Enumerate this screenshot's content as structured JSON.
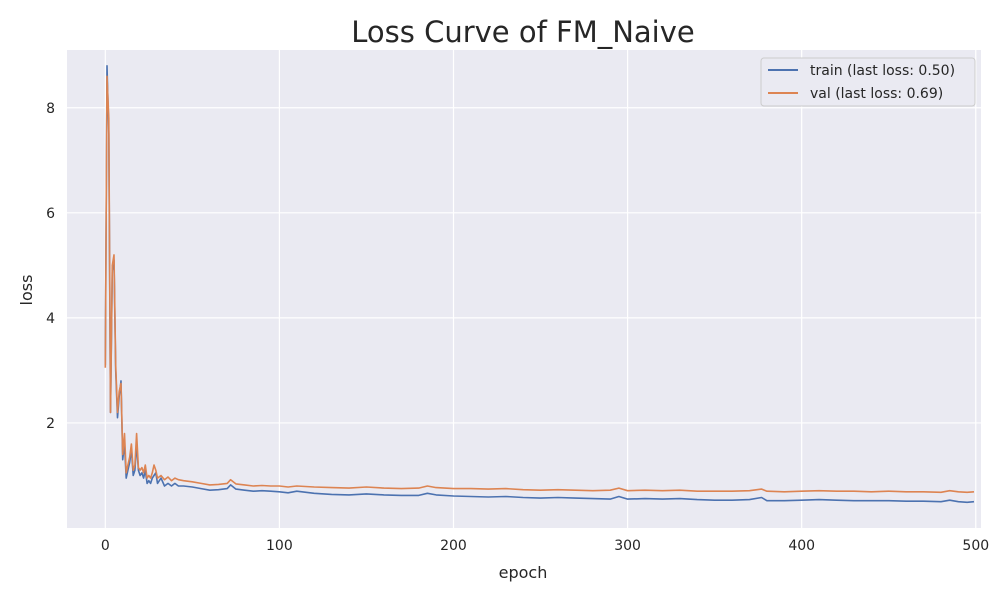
{
  "chart_data": {
    "type": "line",
    "title": "Loss Curve of FM_Naive",
    "xlabel": "epoch",
    "ylabel": "loss",
    "xlim": [
      -22,
      503
    ],
    "ylim": [
      0.0,
      9.1
    ],
    "xticks": [
      0,
      100,
      200,
      300,
      400,
      500
    ],
    "yticks": [
      2,
      4,
      6,
      8
    ],
    "grid": true,
    "legend_position": "top-right",
    "series": [
      {
        "name": "train (last loss: 0.50)",
        "color": "#4c72b0",
        "x": [
          0,
          1,
          2,
          3,
          4,
          5,
          6,
          7,
          8,
          9,
          10,
          11,
          12,
          13,
          14,
          15,
          16,
          17,
          18,
          19,
          20,
          21,
          22,
          23,
          24,
          25,
          26,
          27,
          28,
          29,
          30,
          32,
          34,
          36,
          38,
          40,
          42,
          45,
          50,
          55,
          60,
          65,
          70,
          72,
          75,
          80,
          85,
          90,
          95,
          100,
          105,
          110,
          120,
          130,
          140,
          150,
          160,
          170,
          180,
          185,
          190,
          200,
          210,
          220,
          230,
          240,
          250,
          260,
          270,
          280,
          290,
          295,
          300,
          310,
          320,
          330,
          340,
          350,
          360,
          370,
          377,
          380,
          390,
          400,
          410,
          420,
          430,
          440,
          450,
          460,
          470,
          480,
          485,
          490,
          495,
          499
        ],
        "values": [
          3.1,
          8.8,
          7.5,
          2.2,
          4.9,
          5.1,
          3.0,
          2.1,
          2.5,
          2.8,
          1.3,
          1.6,
          0.95,
          1.1,
          1.25,
          1.5,
          1.0,
          1.1,
          1.6,
          1.1,
          1.0,
          1.05,
          0.95,
          1.1,
          0.85,
          0.9,
          0.85,
          0.95,
          1.0,
          1.05,
          0.85,
          0.95,
          0.8,
          0.85,
          0.8,
          0.85,
          0.8,
          0.8,
          0.78,
          0.75,
          0.72,
          0.73,
          0.75,
          0.82,
          0.74,
          0.72,
          0.7,
          0.71,
          0.7,
          0.69,
          0.67,
          0.7,
          0.66,
          0.64,
          0.63,
          0.65,
          0.63,
          0.62,
          0.62,
          0.66,
          0.63,
          0.61,
          0.6,
          0.59,
          0.6,
          0.58,
          0.57,
          0.58,
          0.57,
          0.56,
          0.55,
          0.6,
          0.55,
          0.56,
          0.55,
          0.56,
          0.54,
          0.53,
          0.53,
          0.54,
          0.58,
          0.52,
          0.52,
          0.53,
          0.54,
          0.53,
          0.52,
          0.52,
          0.52,
          0.51,
          0.51,
          0.5,
          0.53,
          0.5,
          0.49,
          0.5
        ]
      },
      {
        "name": "val (last loss: 0.69)",
        "color": "#dd8452",
        "x": [
          0,
          1,
          2,
          3,
          4,
          5,
          6,
          7,
          8,
          9,
          10,
          11,
          12,
          13,
          14,
          15,
          16,
          17,
          18,
          19,
          20,
          21,
          22,
          23,
          24,
          25,
          26,
          27,
          28,
          29,
          30,
          32,
          34,
          36,
          38,
          40,
          42,
          45,
          50,
          55,
          60,
          65,
          70,
          72,
          75,
          80,
          85,
          90,
          95,
          100,
          105,
          110,
          120,
          130,
          140,
          150,
          160,
          170,
          180,
          185,
          190,
          200,
          210,
          220,
          230,
          240,
          250,
          260,
          270,
          280,
          290,
          295,
          300,
          310,
          320,
          330,
          340,
          350,
          360,
          370,
          377,
          380,
          390,
          400,
          410,
          420,
          430,
          440,
          450,
          460,
          470,
          480,
          485,
          490,
          495,
          499
        ],
        "values": [
          3.05,
          8.6,
          7.8,
          2.2,
          5.0,
          5.2,
          3.1,
          2.2,
          2.6,
          2.75,
          1.4,
          1.8,
          1.05,
          1.2,
          1.35,
          1.6,
          1.1,
          1.2,
          1.8,
          1.15,
          1.1,
          1.15,
          1.05,
          1.2,
          0.95,
          1.0,
          0.95,
          1.05,
          1.2,
          1.1,
          0.95,
          1.0,
          0.92,
          0.97,
          0.9,
          0.95,
          0.92,
          0.9,
          0.88,
          0.85,
          0.82,
          0.83,
          0.85,
          0.92,
          0.84,
          0.82,
          0.8,
          0.81,
          0.8,
          0.8,
          0.78,
          0.8,
          0.78,
          0.77,
          0.76,
          0.78,
          0.76,
          0.75,
          0.76,
          0.8,
          0.77,
          0.75,
          0.75,
          0.74,
          0.75,
          0.73,
          0.72,
          0.73,
          0.72,
          0.71,
          0.72,
          0.76,
          0.71,
          0.72,
          0.71,
          0.72,
          0.7,
          0.7,
          0.7,
          0.71,
          0.74,
          0.7,
          0.69,
          0.7,
          0.71,
          0.7,
          0.7,
          0.69,
          0.7,
          0.69,
          0.69,
          0.68,
          0.71,
          0.69,
          0.68,
          0.69
        ]
      }
    ]
  }
}
